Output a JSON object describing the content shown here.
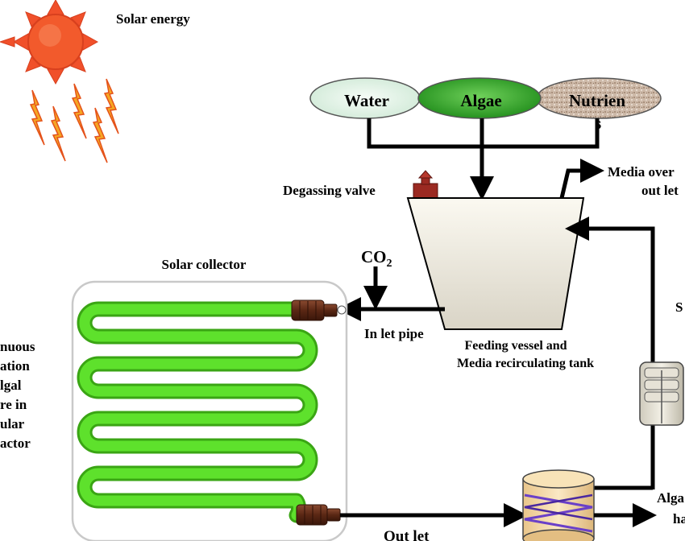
{
  "labels": {
    "solar_energy": "Solar energy",
    "water": "Water",
    "algae": "Algae",
    "nutrients_line1": "Nutrien",
    "nutrients_line2": "s",
    "degassing_valve": "Degassing valve",
    "media_overflow_line1": "Media over",
    "media_overflow_line2": "out let",
    "co2_main": "CO",
    "co2_sub": "2",
    "solar_collector": "Solar collector",
    "inlet_pipe": "In let pipe",
    "tank_line1": "Feeding vessel and",
    "tank_line2": "Media recirculating tank",
    "left_line1": "nuous",
    "left_line2": "ation",
    "left_line3": "lgal",
    "left_line4": "re in",
    "left_line5": "ular",
    "left_line6": "actor",
    "right_s": "S",
    "algae_harvest_line1": "Alga",
    "algae_harvest_line2": "ha",
    "outlet": "Out let"
  },
  "colors": {
    "sun": "#f0502a",
    "lightning": "#f5a623",
    "tube": "#4cd61e",
    "water_fill": "#e8f7ec",
    "algae_fill": "#3fae2a",
    "nutrient_fill": "#c8b4a4",
    "tank_fill": "#f3efe4",
    "valve": "#9b2a22",
    "pump_fill": "#e8e4d8",
    "harvester_fill": "#f5deb0",
    "coil": "#6a40c8",
    "connector": "#6b2e1a"
  }
}
